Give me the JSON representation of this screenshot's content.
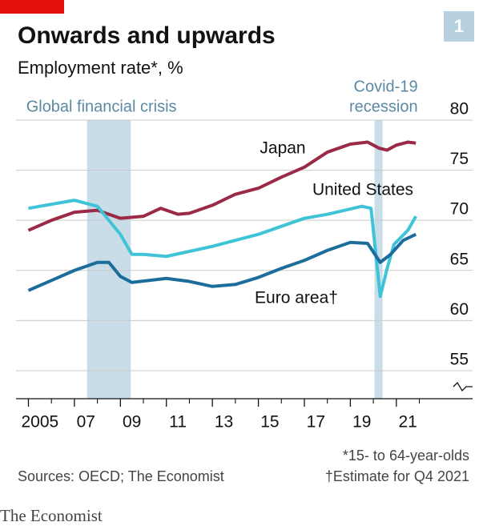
{
  "chart_data": {
    "type": "line",
    "title": "Onwards and upwards",
    "subtitle": "Employment rate*, %",
    "chart_number": "1",
    "footnotes": [
      "*15- to 64-year-olds",
      "†Estimate for Q4 2021"
    ],
    "source": "Sources: OECD; The Economist",
    "brand": "The Economist",
    "shaded_periods": [
      {
        "start": 2007.55,
        "end": 2009.45,
        "label": [
          "Global financial crisis"
        ]
      },
      {
        "start": 2020.05,
        "end": 2020.4,
        "label": [
          "Covid-19",
          "recession"
        ]
      }
    ],
    "xlim": [
      2004.6,
      2022.4
    ],
    "xticks": [
      {
        "value": 2005,
        "label": "2005"
      },
      {
        "value": 2007,
        "label": "07"
      },
      {
        "value": 2009,
        "label": "09"
      },
      {
        "value": 2011,
        "label": "11"
      },
      {
        "value": 2013,
        "label": "13"
      },
      {
        "value": 2015,
        "label": "15"
      },
      {
        "value": 2017,
        "label": "17"
      },
      {
        "value": 2019,
        "label": "19"
      },
      {
        "value": 2021,
        "label": "21"
      }
    ],
    "ylim": [
      52.2,
      80
    ],
    "yticks": [
      55,
      60,
      65,
      70,
      75,
      80
    ],
    "grid": true,
    "series": [
      {
        "name": "Japan",
        "color": "#9a2a45",
        "x": [
          2005,
          2006,
          2007,
          2008,
          2009,
          2010,
          2010.75,
          2011.5,
          2012,
          2013,
          2014,
          2015,
          2016,
          2017,
          2018,
          2019,
          2019.75,
          2020.25,
          2020.6,
          2021,
          2021.5,
          2021.85
        ],
        "values": [
          69.0,
          70.0,
          70.8,
          71.0,
          70.2,
          70.4,
          71.2,
          70.6,
          70.7,
          71.5,
          72.6,
          73.2,
          74.3,
          75.3,
          76.8,
          77.6,
          77.8,
          77.2,
          77.0,
          77.5,
          77.8,
          77.7
        ]
      },
      {
        "name": "United States",
        "color": "#3ec4d6",
        "x": [
          2005,
          2007,
          2008,
          2009,
          2009.5,
          2010,
          2011,
          2012,
          2013,
          2014,
          2015,
          2016,
          2017,
          2018,
          2019.5,
          2019.9,
          2020.3,
          2020.6,
          2020.9,
          2021.5,
          2021.85
        ],
        "values": [
          71.2,
          72.0,
          71.4,
          68.6,
          66.6,
          66.6,
          66.4,
          66.9,
          67.4,
          68.0,
          68.6,
          69.4,
          70.2,
          70.6,
          71.4,
          71.2,
          62.4,
          65.2,
          67.6,
          69.0,
          70.4
        ]
      },
      {
        "name": "Euro area†",
        "color": "#1c6c9c",
        "x": [
          2005,
          2006,
          2007,
          2008,
          2008.5,
          2009,
          2009.5,
          2011,
          2012,
          2013,
          2014,
          2015,
          2016,
          2017,
          2018,
          2019,
          2019.75,
          2020.3,
          2020.75,
          2021.3,
          2021.85
        ],
        "values": [
          63.0,
          64.0,
          65.0,
          65.8,
          65.8,
          64.4,
          63.8,
          64.2,
          63.9,
          63.4,
          63.6,
          64.3,
          65.2,
          66.0,
          67.0,
          67.8,
          67.7,
          65.8,
          66.6,
          68.0,
          68.6
        ]
      }
    ]
  }
}
